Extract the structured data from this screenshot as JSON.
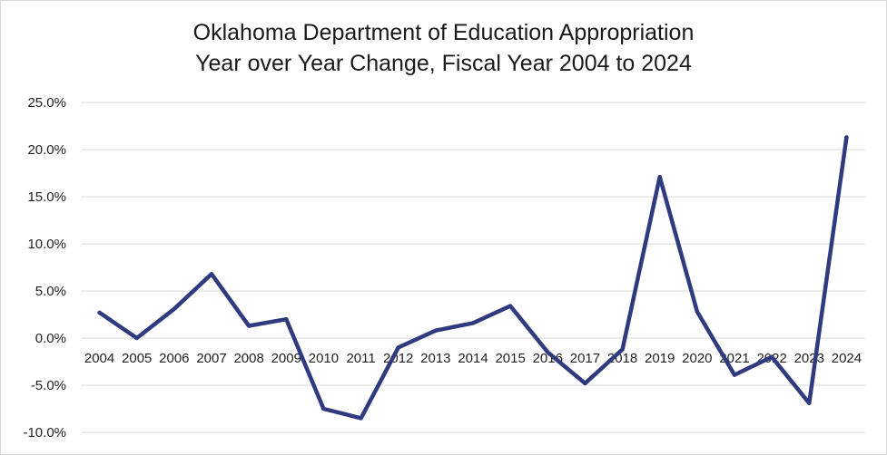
{
  "chart_data": {
    "type": "line",
    "title_line1": "Oklahoma Department of Education Appropriation",
    "title_line2": "Year over Year Change, Fiscal Year 2004 to 2024",
    "xlabel": "",
    "ylabel": "",
    "ylim": [
      -10,
      25
    ],
    "y_ticks": [
      "25.0%",
      "20.0%",
      "15.0%",
      "10.0%",
      "5.0%",
      "0.0%",
      "-5.0%",
      "-10.0%"
    ],
    "grid": true,
    "categories": [
      "2004",
      "2005",
      "2006",
      "2007",
      "2008",
      "2009",
      "2010",
      "2011",
      "2012",
      "2013",
      "2014",
      "2015",
      "2016",
      "2017",
      "2018",
      "2019",
      "2020",
      "2021",
      "2022",
      "2023",
      "2024"
    ],
    "series": [
      {
        "color": "#2f3a7f",
        "values": [
          2.7,
          0.0,
          3.1,
          6.8,
          1.3,
          2.0,
          -7.5,
          -8.5,
          -1.0,
          0.8,
          1.6,
          3.4,
          -1.5,
          -4.8,
          -1.2,
          17.1,
          2.8,
          -3.9,
          -2.0,
          -6.9,
          21.3
        ]
      }
    ]
  }
}
